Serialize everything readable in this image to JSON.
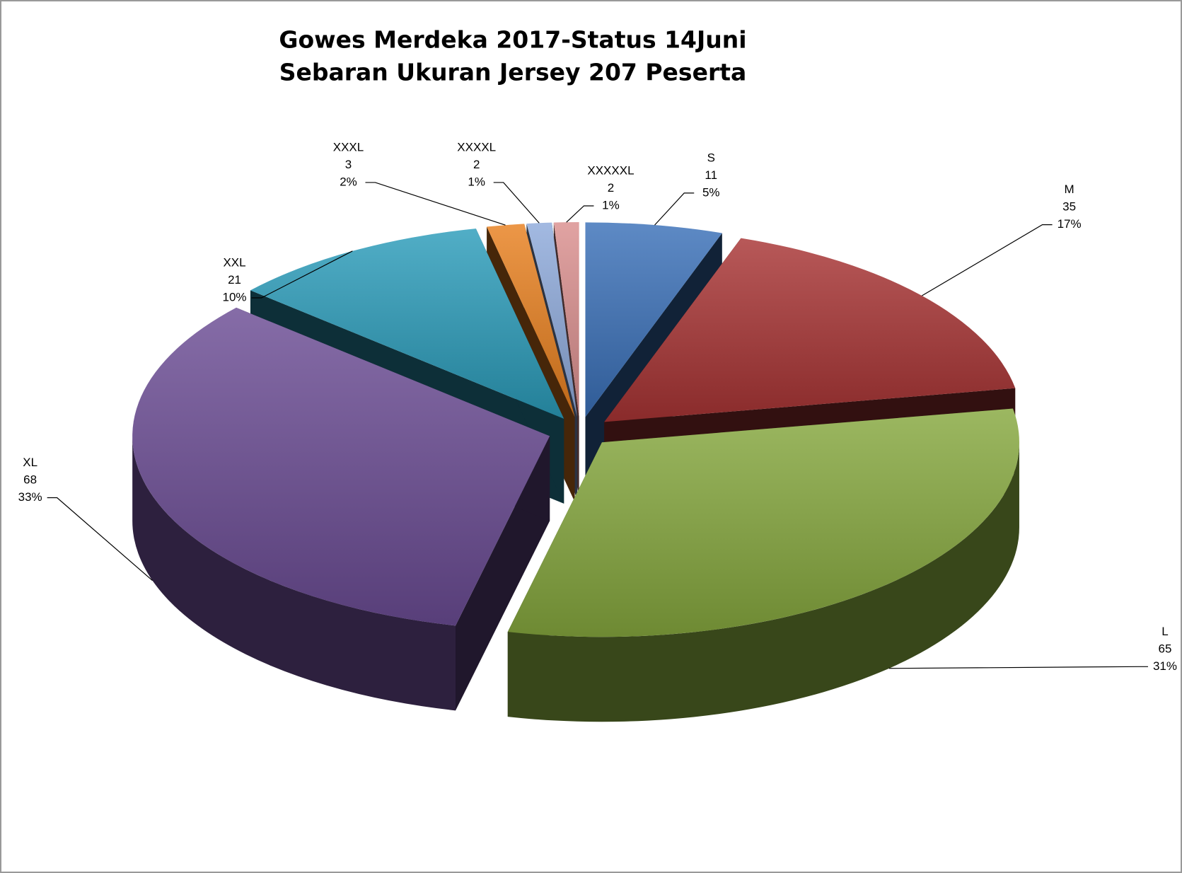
{
  "chart_data": {
    "type": "pie3d",
    "title": "Gowes Merdeka 2017-Status 14Juni",
    "subtitle": "Sebaran Ukuran Jersey 207 Peserta",
    "categories": [
      "S",
      "M",
      "L",
      "XL",
      "XXL",
      "XXXL",
      "XXXXL",
      "XXXXXL"
    ],
    "values": [
      11,
      35,
      65,
      68,
      21,
      3,
      2,
      2
    ],
    "percent_labels": [
      "5%",
      "17%",
      "31%",
      "33%",
      "10%",
      "2%",
      "1%",
      "1%"
    ],
    "colors": [
      "#3a70b8",
      "#a83434",
      "#86a83e",
      "#6b4c94",
      "#2b9cba",
      "#e8801f",
      "#8eaadb",
      "#da8f8e"
    ]
  }
}
